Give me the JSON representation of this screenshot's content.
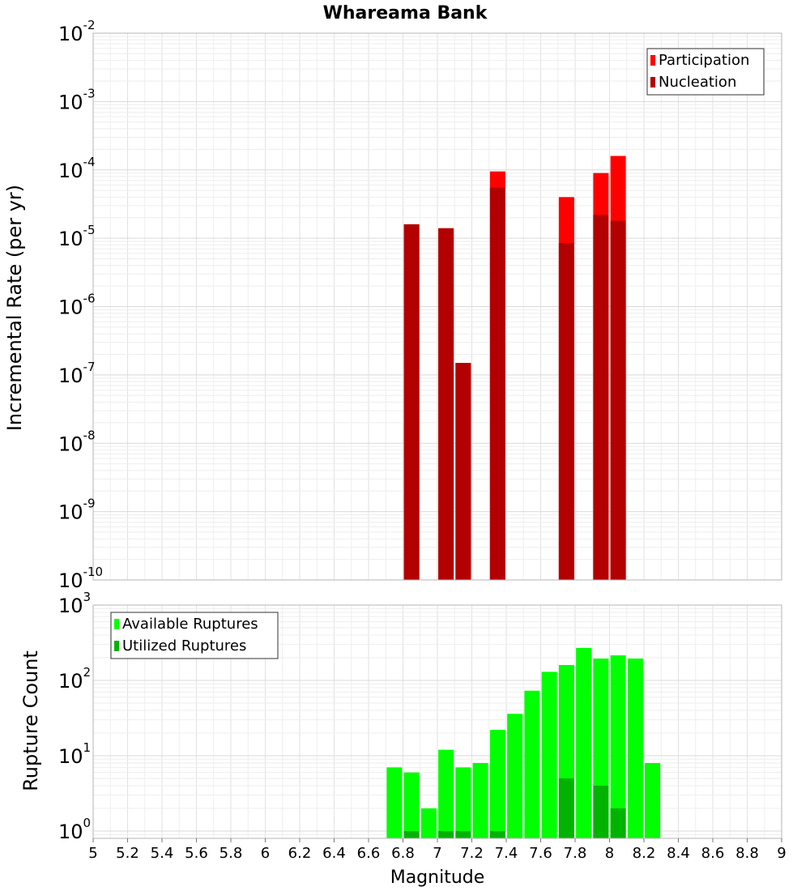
{
  "chart_data": [
    {
      "type": "bar",
      "title": "Whareama Bank",
      "ylabel": "Incremental Rate (per yr)",
      "xlabel": "",
      "y_scale": "log",
      "ylim": [
        1e-10,
        0.01
      ],
      "xlim": [
        5,
        9
      ],
      "y_ticks": [
        {
          "base": "10",
          "exp": "-2",
          "value": 0.01
        },
        {
          "base": "10",
          "exp": "-3",
          "value": 0.001
        },
        {
          "base": "10",
          "exp": "-4",
          "value": 0.0001
        },
        {
          "base": "10",
          "exp": "-5",
          "value": 1e-05
        },
        {
          "base": "10",
          "exp": "-6",
          "value": 1e-06
        },
        {
          "base": "10",
          "exp": "-7",
          "value": 1e-07
        },
        {
          "base": "10",
          "exp": "-8",
          "value": 1e-08
        },
        {
          "base": "10",
          "exp": "-9",
          "value": 1e-09
        },
        {
          "base": "10",
          "exp": "-10",
          "value": 1e-10
        }
      ],
      "legend": {
        "placement": "top-right",
        "entries": [
          "Participation",
          "Nucleation"
        ]
      },
      "grid": true,
      "colors": {
        "Participation": "#ff0000",
        "Nucleation": "#b30000"
      },
      "series": [
        {
          "name": "Participation",
          "x": [
            6.85,
            7.05,
            7.15,
            7.35,
            7.75,
            7.95,
            8.05
          ],
          "values": [
            1.6e-05,
            1.4e-05,
            1.5e-07,
            9.5e-05,
            4e-05,
            9e-05,
            0.00016
          ]
        },
        {
          "name": "Nucleation",
          "x": [
            6.85,
            7.05,
            7.15,
            7.35,
            7.75,
            7.95,
            8.05
          ],
          "values": [
            1.6e-05,
            1.4e-05,
            1.5e-07,
            5.5e-05,
            8.5e-06,
            2.2e-05,
            1.8e-05
          ]
        }
      ]
    },
    {
      "type": "bar",
      "title": "",
      "ylabel": "Rupture Count",
      "xlabel": "Magnitude",
      "y_scale": "log",
      "ylim": [
        0.8,
        1000
      ],
      "xlim": [
        5,
        9
      ],
      "y_ticks": [
        {
          "base": "10",
          "exp": "3",
          "value": 1000
        },
        {
          "base": "10",
          "exp": "2",
          "value": 100
        },
        {
          "base": "10",
          "exp": "1",
          "value": 10
        },
        {
          "base": "10",
          "exp": "0",
          "value": 1
        }
      ],
      "x_ticks": [
        "5",
        "5.2",
        "5.4",
        "5.6",
        "5.8",
        "6",
        "6.2",
        "6.4",
        "6.6",
        "6.8",
        "7",
        "7.2",
        "7.4",
        "7.6",
        "7.8",
        "8",
        "8.2",
        "8.4",
        "8.6",
        "8.8",
        "9"
      ],
      "legend": {
        "placement": "top-left",
        "entries": [
          "Available Ruptures",
          "Utilized Ruptures"
        ]
      },
      "grid": true,
      "colors": {
        "Available Ruptures": "#00ff00",
        "Utilized Ruptures": "#00b300"
      },
      "series": [
        {
          "name": "Available Ruptures",
          "x": [
            6.75,
            6.85,
            6.95,
            7.05,
            7.15,
            7.25,
            7.35,
            7.45,
            7.55,
            7.65,
            7.75,
            7.85,
            7.95,
            8.05,
            8.15,
            8.25
          ],
          "values": [
            7,
            6,
            2,
            12,
            7,
            8,
            22,
            36,
            73,
            130,
            160,
            270,
            195,
            215,
            195,
            8
          ]
        },
        {
          "name": "Utilized Ruptures",
          "x": [
            6.85,
            7.05,
            7.15,
            7.35,
            7.75,
            7.95,
            8.05
          ],
          "values": [
            1,
            1,
            1,
            1,
            5,
            4,
            2
          ]
        }
      ]
    }
  ]
}
